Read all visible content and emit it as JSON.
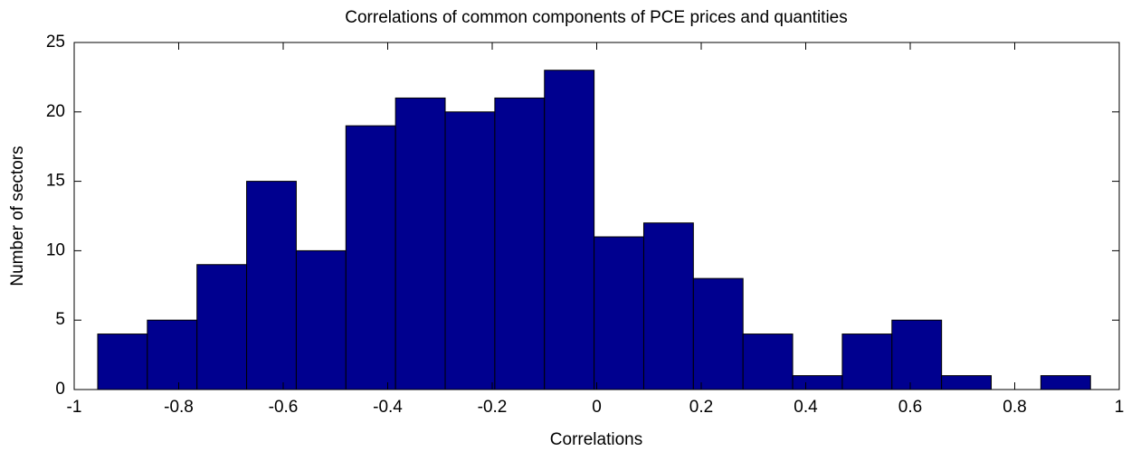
{
  "chart_data": {
    "type": "histogram",
    "title": "Correlations of common components of PCE prices and quantities",
    "xlabel": "Correlations",
    "ylabel": "Number of sectors",
    "bins": [
      -0.955,
      -0.86,
      -0.765,
      -0.67,
      -0.575,
      -0.48,
      -0.385,
      -0.29,
      -0.195,
      -0.1,
      -0.005,
      0.09,
      0.185,
      0.28,
      0.375,
      0.47,
      0.565,
      0.66,
      0.755,
      0.85,
      0.945
    ],
    "values": [
      4,
      5,
      9,
      15,
      10,
      19,
      21,
      20,
      21,
      23,
      11,
      12,
      8,
      4,
      1,
      4,
      5,
      1,
      0,
      1
    ],
    "color": "#00008f",
    "xlim": [
      -1,
      1
    ],
    "xticks": [
      -1,
      -0.8,
      -0.6,
      -0.4,
      -0.2,
      0,
      0.2,
      0.4,
      0.6,
      0.8,
      1
    ],
    "ylim": [
      0,
      25
    ],
    "yticks": [
      0,
      5,
      10,
      15,
      20,
      25
    ]
  }
}
